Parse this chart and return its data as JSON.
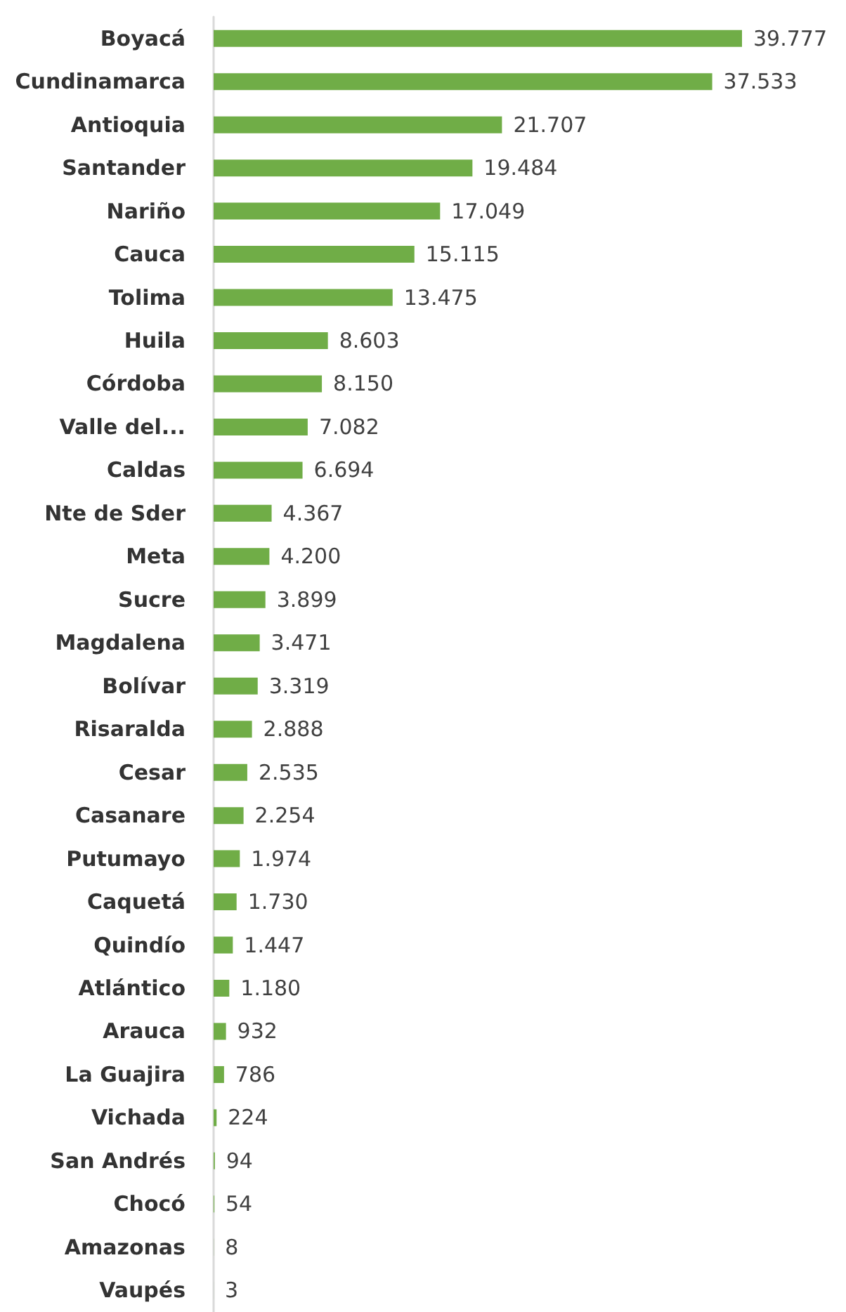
{
  "chart_data": {
    "type": "bar",
    "orientation": "horizontal",
    "color": "#70ad47",
    "categories": [
      "Boyacá",
      "Cundinamarca",
      "Antioquia",
      "Santander",
      "Nariño",
      "Cauca",
      "Tolima",
      "Huila",
      "Córdoba",
      "Valle del...",
      "Caldas",
      "Nte de Sder",
      "Meta",
      "Sucre",
      "Magdalena",
      "Bolívar",
      "Risaralda",
      "Cesar",
      "Casanare",
      "Putumayo",
      "Caquetá",
      "Quindío",
      "Atlántico",
      "Arauca",
      "La Guajira",
      "Vichada",
      "San Andrés",
      "Chocó",
      "Amazonas",
      "Vaupés"
    ],
    "values": [
      39777,
      37533,
      21707,
      19484,
      17049,
      15115,
      13475,
      8603,
      8150,
      7082,
      6694,
      4367,
      4200,
      3899,
      3471,
      3319,
      2888,
      2535,
      2254,
      1974,
      1730,
      1447,
      1180,
      932,
      786,
      224,
      94,
      54,
      8,
      3
    ],
    "value_labels": [
      "39.777",
      "37.533",
      "21.707",
      "19.484",
      "17.049",
      "15.115",
      "13.475",
      "8.603",
      "8.150",
      "7.082",
      "6.694",
      "4.367",
      "4.200",
      "3.899",
      "3.471",
      "3.319",
      "2.888",
      "2.535",
      "2.254",
      "1.974",
      "1.730",
      "1.447",
      "1.180",
      "932",
      "786",
      "224",
      "94",
      "54",
      "8",
      "3"
    ]
  }
}
